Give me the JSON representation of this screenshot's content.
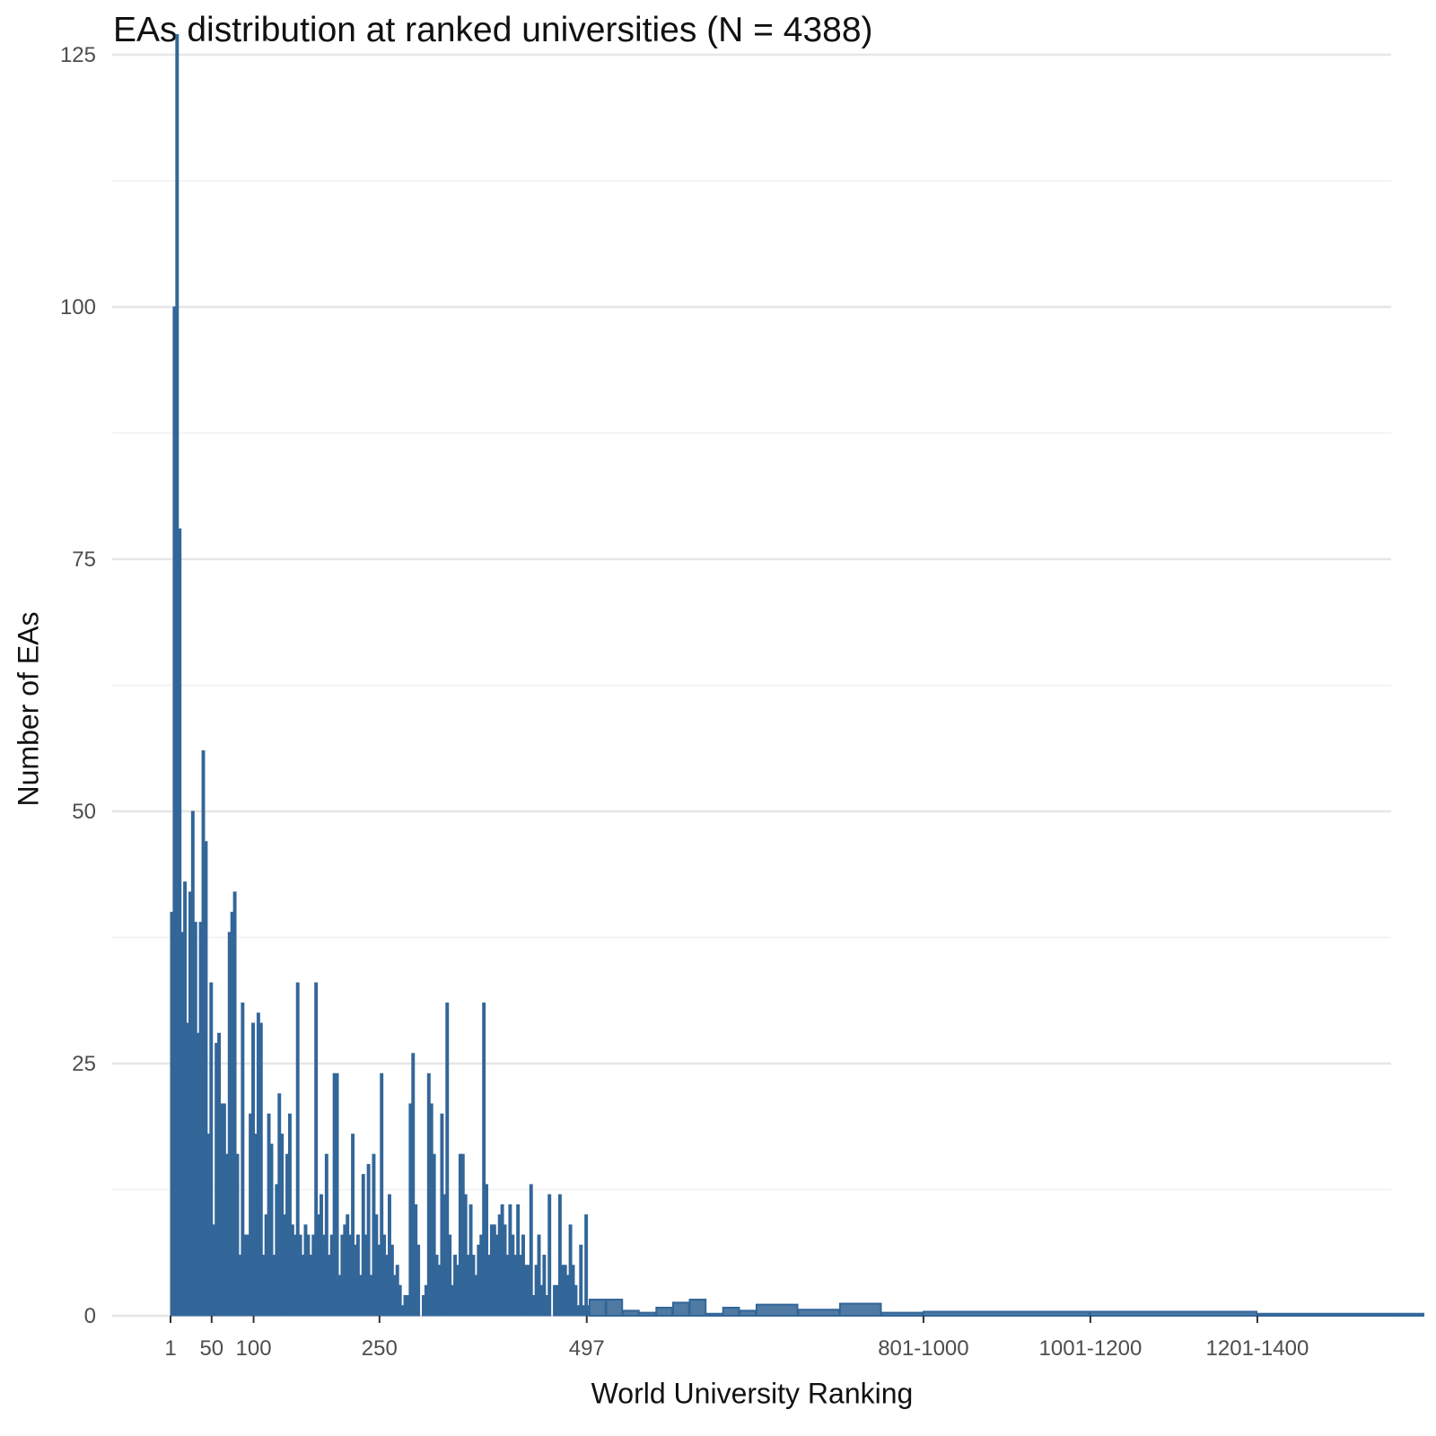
{
  "chart_data": {
    "type": "bar",
    "title": "EAs distribution at ranked universities (N = 4388)",
    "xlabel": "World University Ranking",
    "ylabel": "Number of EAs",
    "ylim": [
      0,
      127
    ],
    "y_ticks": [
      0,
      25,
      50,
      75,
      100,
      125
    ],
    "x_ticks": [
      {
        "label": "1",
        "rank": 1
      },
      {
        "label": "50",
        "rank": 50
      },
      {
        "label": "100",
        "rank": 100
      },
      {
        "label": "250",
        "rank": 250
      },
      {
        "label": "497",
        "rank": 497
      },
      {
        "label": "801-1000",
        "rank": 901
      },
      {
        "label": "1001-1200",
        "rank": 1101
      },
      {
        "label": "1201-1400",
        "rank": 1301
      }
    ],
    "grid": true,
    "bar_color": "#336699",
    "individual_rank_values": [
      40,
      100,
      127,
      78,
      38,
      43,
      29,
      42,
      50,
      39,
      28,
      39,
      56,
      47,
      18,
      33,
      9,
      27,
      28,
      21,
      21,
      16,
      38,
      40,
      42,
      16,
      6,
      31,
      8,
      8,
      20,
      29,
      18,
      30,
      29,
      6,
      10,
      20,
      17,
      6,
      13,
      22,
      18,
      10,
      16,
      20,
      9,
      8,
      33,
      8,
      6,
      9,
      8,
      6,
      8,
      33,
      10,
      12,
      8,
      16,
      6,
      8,
      24,
      24,
      4,
      8,
      9,
      10,
      8,
      18,
      7,
      8,
      4,
      14,
      8,
      15,
      4,
      16,
      10,
      7,
      24,
      8,
      6,
      12,
      7,
      4,
      5,
      3,
      1,
      2,
      2,
      21,
      26,
      11,
      7,
      0,
      2,
      3,
      24,
      21,
      16,
      6,
      5,
      20,
      12,
      31,
      8,
      3,
      6,
      5,
      16,
      16,
      12,
      6,
      11,
      6,
      4,
      7,
      8,
      31,
      13,
      6,
      9,
      9,
      8,
      10,
      11,
      9,
      6,
      11,
      8,
      6,
      11,
      6,
      8,
      5,
      5,
      13,
      2,
      5,
      8,
      3,
      6,
      2,
      12,
      0,
      3,
      3,
      12,
      5,
      5,
      4,
      9,
      5,
      3,
      1,
      7,
      1,
      10,
      1
    ],
    "individual_rank_range": [
      1,
      500
    ],
    "band_values": [
      {
        "range": "501-520",
        "value": 1.6
      },
      {
        "range": "521-540",
        "value": 1.6
      },
      {
        "range": "541-560",
        "value": 0.5
      },
      {
        "range": "561-580",
        "value": 0.3
      },
      {
        "range": "581-600",
        "value": 0.8
      },
      {
        "range": "601-620",
        "value": 1.3
      },
      {
        "range": "621-640",
        "value": 1.6
      },
      {
        "range": "641-660",
        "value": 0.2
      },
      {
        "range": "661-680",
        "value": 0.8
      },
      {
        "range": "681-700",
        "value": 0.5
      },
      {
        "range": "701-750",
        "value": 1.1
      },
      {
        "range": "751-800",
        "value": 0.6
      },
      {
        "range": "801-850",
        "value": 1.2
      },
      {
        "range": "851-900",
        "value": 0.3
      },
      {
        "range": "901-1100",
        "value": 0.4
      },
      {
        "range": "1101-1300",
        "value": 0.4
      },
      {
        "range": "1301-1500",
        "value": 0.2
      }
    ]
  }
}
